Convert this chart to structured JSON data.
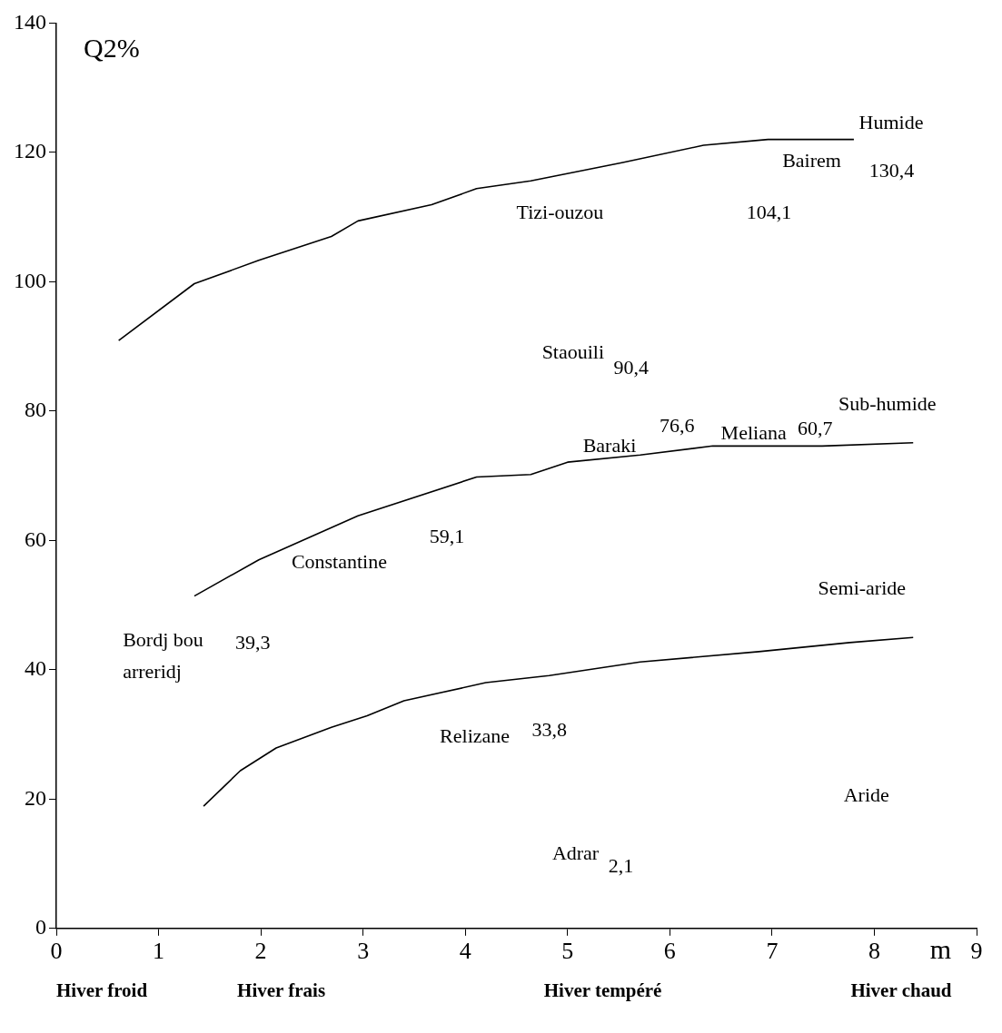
{
  "chart_data": {
    "type": "line",
    "xlabel": "m",
    "ylabel": "Q2%",
    "xlim": [
      0,
      9
    ],
    "xticks": [
      0,
      1,
      2,
      3,
      4,
      5,
      6,
      7,
      8,
      9
    ],
    "ylim": [
      0,
      140
    ],
    "yticks": [
      0,
      20,
      40,
      60,
      80,
      100,
      120,
      140
    ],
    "grid": false,
    "legend": false,
    "marker": "none",
    "line_style": "solid",
    "series": [
      {
        "color": "#000000",
        "x": [
          0.61,
          1.35,
          1.98,
          2.69,
          2.95,
          3.67,
          4.11,
          4.64,
          5.53,
          6.33,
          6.96,
          7.8
        ],
        "values": [
          90.9,
          99.7,
          103.3,
          107,
          109.4,
          111.9,
          114.4,
          115.6,
          118.4,
          121.1,
          122,
          122
        ]
      },
      {
        "color": "#000000",
        "x": [
          1.35,
          1.98,
          2.95,
          4.11,
          4.64,
          5.0,
          5.71,
          6.42,
          7.49,
          8.38
        ],
        "values": [
          51.4,
          57,
          63.8,
          69.8,
          70.2,
          72.1,
          73.2,
          74.6,
          74.6,
          75.1
        ]
      },
      {
        "color": "#000000",
        "x": [
          1.44,
          1.8,
          2.15,
          2.69,
          3.04,
          3.4,
          4.2,
          4.82,
          5.71,
          6.87,
          7.76,
          8.38
        ],
        "values": [
          18.9,
          24.4,
          27.9,
          31.1,
          32.9,
          35.2,
          38,
          39.1,
          41.2,
          42.8,
          44.2,
          45
        ]
      }
    ],
    "annotations": [
      "Humide",
      "Bairem",
      "130,4",
      "Tizi-ouzou",
      "104,1",
      "Staouili",
      "90,4",
      "Sub-humide",
      "Baraki",
      "76,6",
      "Meliana",
      "60,7",
      "59,1",
      "Constantine",
      "Semi-aride",
      "Bordj bou",
      "arreridj",
      "39,3",
      "Relizane",
      "33,8",
      "Aride",
      "Adrar",
      "2,1",
      "Hiver froid",
      "Hiver frais",
      "Hiver tempéré",
      "Hiver chaud"
    ]
  }
}
